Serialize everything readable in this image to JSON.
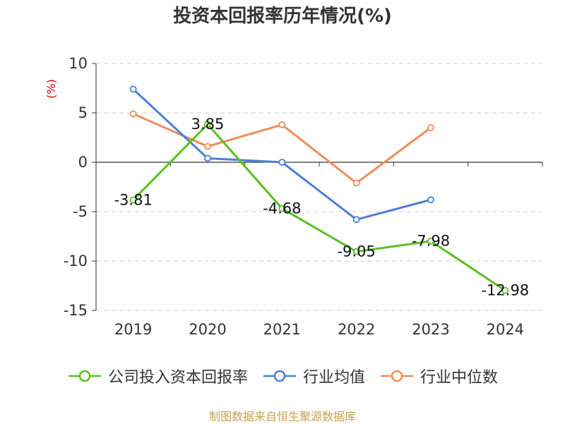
{
  "title": "投资本回报率历年情况(%)",
  "source_note": "制图数据来自恒生聚源数据库",
  "colors": {
    "company": "#5bbf21",
    "industry_avg": "#4a7fd6",
    "industry_median": "#f28c5a",
    "ylabel": "#cc0000",
    "axis": "#333333",
    "grid": "#cccccc",
    "text": "#333333"
  },
  "chart_data": {
    "type": "line",
    "title": "投资本回报率历年情况(%)",
    "xlabel": "",
    "ylabel": "(%)",
    "categories": [
      "2019",
      "2020",
      "2021",
      "2022",
      "2023",
      "2024"
    ],
    "yticks": [
      "10",
      "5",
      "0",
      "-5",
      "-10",
      "-15"
    ],
    "ylim": [
      -15,
      10
    ],
    "grid": true,
    "legend_position": "bottom",
    "series": [
      {
        "name": "公司投入资本回报率",
        "values": [
          -3.81,
          3.85,
          -4.68,
          -9.05,
          -7.98,
          -12.98
        ],
        "labels": [
          "-3.81",
          "3.85",
          "-4.68",
          "-9.05",
          "-7.98",
          "-12.98"
        ]
      },
      {
        "name": "行业均值",
        "values": [
          7.4,
          0.4,
          0.0,
          -5.8,
          -3.8,
          null
        ]
      },
      {
        "name": "行业中位数",
        "values": [
          4.9,
          1.6,
          3.8,
          -2.1,
          3.5,
          null
        ]
      }
    ]
  }
}
